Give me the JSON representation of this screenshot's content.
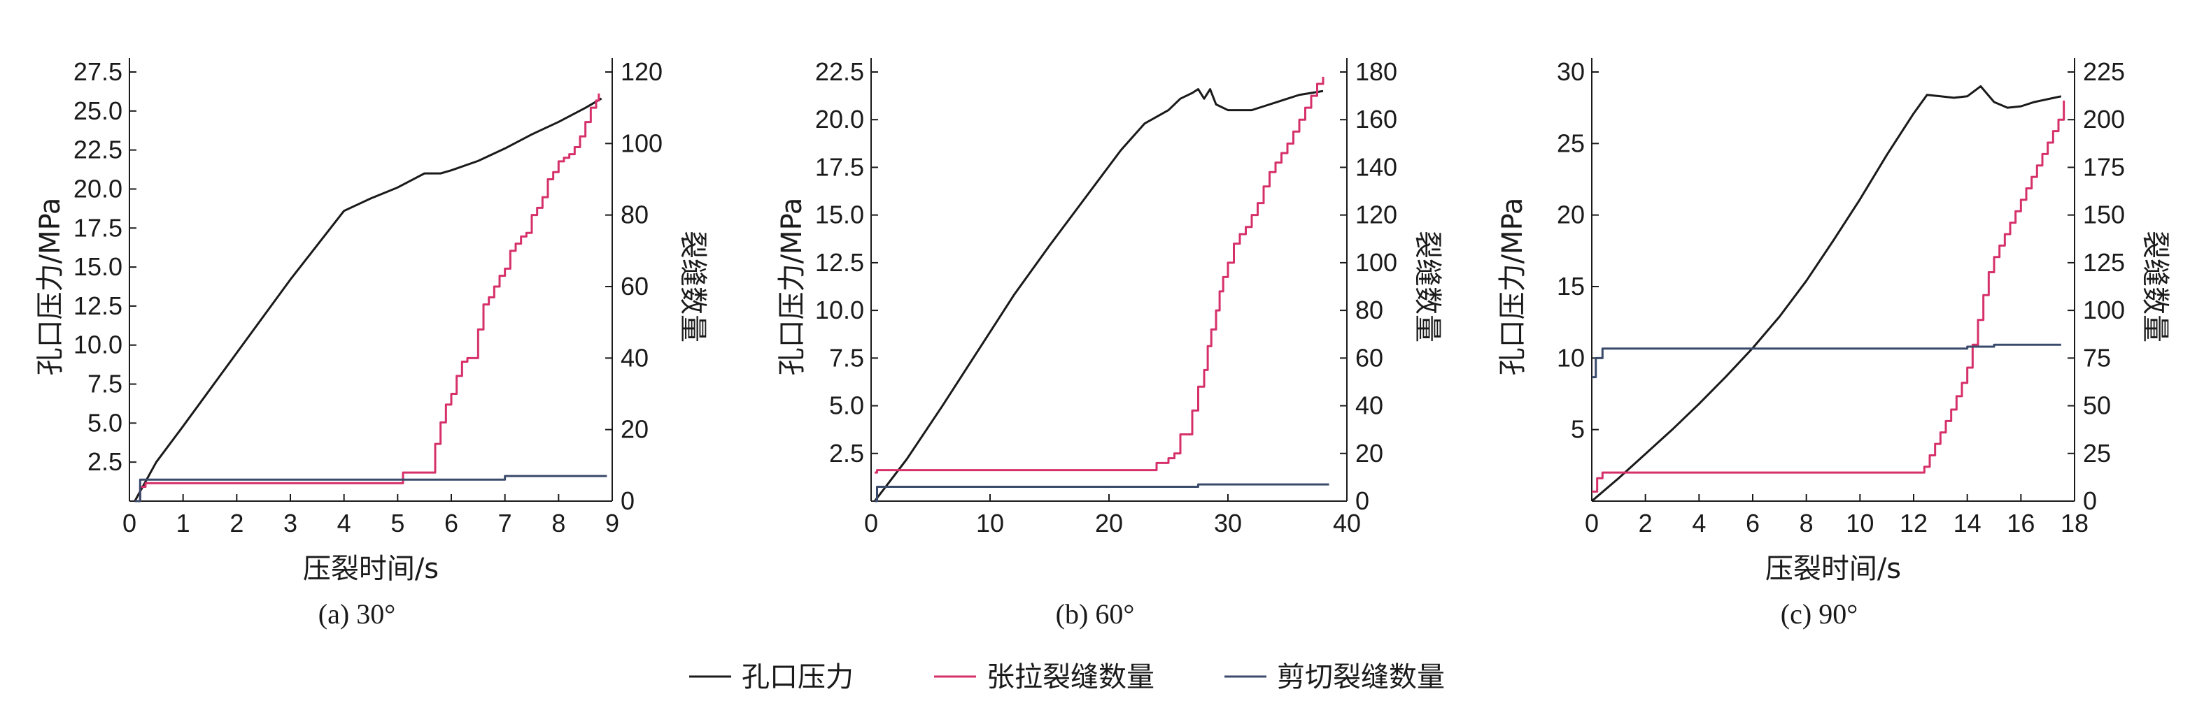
{
  "chart_data": [
    {
      "type": "line",
      "caption": "(a) 30°",
      "xlabel": "压裂时间/s",
      "ylabel": "孔口压力/MPa",
      "y2label": "裂缝数量",
      "xlim": [
        0,
        9
      ],
      "ylim": [
        0,
        27.5
      ],
      "y2lim": [
        0,
        120
      ],
      "xticks": [
        "0",
        "1",
        "2",
        "3",
        "4",
        "5",
        "6",
        "7",
        "8",
        "9"
      ],
      "yticks": [
        "2.5",
        "5.0",
        "7.5",
        "10.0",
        "12.5",
        "15.0",
        "17.5",
        "20.0",
        "22.5",
        "25.0",
        "27.5"
      ],
      "y2ticks": [
        "0",
        "20",
        "40",
        "60",
        "80",
        "100",
        "120"
      ],
      "series": [
        {
          "name": "孔口压力",
          "axis": "left",
          "color": "#1a1a1a",
          "x": [
            0.1,
            0.5,
            1,
            2,
            3,
            4,
            4.5,
            5,
            5.5,
            5.8,
            6,
            6.5,
            7,
            7.5,
            8,
            8.5,
            8.8
          ],
          "y": [
            0,
            2.5,
            4.8,
            9.5,
            14.2,
            18.6,
            19.4,
            20.1,
            21.0,
            21.0,
            21.2,
            21.8,
            22.6,
            23.5,
            24.3,
            25.2,
            25.8
          ]
        },
        {
          "name": "张拉裂缝数量",
          "axis": "right",
          "color": "#d6306a",
          "step": true,
          "x": [
            0.1,
            0.2,
            0.3,
            5.0,
            5.1,
            5.6,
            5.7,
            5.8,
            5.9,
            6.0,
            6.1,
            6.2,
            6.3,
            6.4,
            6.5,
            6.6,
            6.7,
            6.8,
            6.9,
            7.0,
            7.1,
            7.2,
            7.3,
            7.4,
            7.5,
            7.6,
            7.7,
            7.8,
            7.9,
            8.0,
            8.1,
            8.2,
            8.3,
            8.4,
            8.5,
            8.6,
            8.7,
            8.75
          ],
          "y": [
            0,
            4,
            5,
            5,
            8,
            8,
            16,
            22,
            27,
            30,
            35,
            39,
            40,
            40,
            48,
            55,
            57,
            60,
            63,
            65,
            70,
            72,
            74,
            75,
            80,
            82,
            85,
            90,
            92,
            95,
            96,
            97,
            99,
            102,
            106,
            110,
            112,
            114
          ]
        },
        {
          "name": "剪切裂缝数量",
          "axis": "right",
          "color": "#3a4a6b",
          "step": true,
          "x": [
            0.1,
            0.2,
            5.0,
            5.1,
            6.9,
            7.0,
            8.9
          ],
          "y": [
            0,
            6,
            6,
            6,
            6,
            7,
            7
          ]
        }
      ]
    },
    {
      "type": "line",
      "caption": "(b) 60°",
      "xlabel": "",
      "ylabel": "孔口压力/MPa",
      "y2label": "裂缝数量",
      "xlim": [
        0,
        40
      ],
      "ylim": [
        0,
        22.5
      ],
      "y2lim": [
        0,
        180
      ],
      "xticks": [
        "0",
        "10",
        "20",
        "30",
        "40"
      ],
      "yticks": [
        "2.5",
        "5.0",
        "7.5",
        "10.0",
        "12.5",
        "15.0",
        "17.5",
        "20.0",
        "22.5"
      ],
      "y2ticks": [
        "0",
        "20",
        "40",
        "60",
        "80",
        "100",
        "120",
        "140",
        "160",
        "180"
      ],
      "series": [
        {
          "name": "孔口压力",
          "axis": "left",
          "color": "#1a1a1a",
          "x": [
            0.3,
            3,
            6,
            9,
            12,
            15,
            18,
            21,
            23,
            25,
            26,
            27,
            27.5,
            28,
            28.5,
            29,
            30,
            31,
            32,
            33,
            34,
            35,
            36,
            37,
            38
          ],
          "y": [
            0,
            2.2,
            5,
            7.9,
            10.8,
            13.4,
            15.9,
            18.4,
            19.8,
            20.5,
            21.1,
            21.4,
            21.6,
            21.1,
            21.6,
            20.8,
            20.5,
            20.5,
            20.5,
            20.7,
            20.9,
            21.1,
            21.3,
            21.4,
            21.5
          ]
        },
        {
          "name": "张拉裂缝数量",
          "axis": "right",
          "color": "#d6306a",
          "step": true,
          "x": [
            0.3,
            0.5,
            23.5,
            24,
            25,
            25.5,
            26,
            26.5,
            27,
            27.5,
            28,
            28.3,
            28.6,
            29,
            29.3,
            29.6,
            30,
            30.5,
            31,
            31.5,
            32,
            32.5,
            33,
            33.5,
            34,
            34.5,
            35,
            35.5,
            36,
            36.5,
            37,
            37.5,
            38
          ],
          "y": [
            12,
            13,
            13,
            16,
            18,
            20,
            28,
            28,
            38,
            48,
            55,
            65,
            72,
            80,
            88,
            94,
            100,
            108,
            112,
            115,
            120,
            125,
            132,
            138,
            142,
            146,
            150,
            155,
            160,
            165,
            170,
            175,
            178
          ]
        },
        {
          "name": "剪切裂缝数量",
          "axis": "right",
          "color": "#3a4a6b",
          "step": true,
          "x": [
            0.3,
            0.5,
            27,
            27.5,
            38.5
          ],
          "y": [
            0,
            6,
            6,
            7,
            7
          ]
        }
      ]
    },
    {
      "type": "line",
      "caption": "(c) 90°",
      "xlabel": "压裂时间/s",
      "ylabel": "孔口压力/MPa",
      "y2label": "裂缝数量",
      "xlim": [
        0,
        18
      ],
      "ylim": [
        0,
        30
      ],
      "y2lim": [
        0,
        225
      ],
      "xticks": [
        "0",
        "2",
        "4",
        "6",
        "8",
        "10",
        "12",
        "14",
        "16",
        "18"
      ],
      "yticks": [
        "5",
        "10",
        "15",
        "20",
        "25",
        "30"
      ],
      "y2ticks": [
        "0",
        "25",
        "50",
        "75",
        "100",
        "125",
        "150",
        "175",
        "200",
        "225"
      ],
      "series": [
        {
          "name": "孔口压力",
          "axis": "left",
          "color": "#1a1a1a",
          "x": [
            0,
            1,
            2,
            3,
            4,
            5,
            6,
            7,
            8,
            9,
            10,
            11,
            12,
            12.5,
            13,
            13.5,
            14,
            14.5,
            15,
            15.5,
            16,
            16.5,
            17,
            17.5
          ],
          "y": [
            0,
            1.6,
            3.3,
            5.0,
            6.8,
            8.7,
            10.7,
            12.9,
            15.4,
            18.2,
            21.1,
            24.2,
            27.1,
            28.4,
            28.3,
            28.2,
            28.3,
            29.0,
            27.9,
            27.5,
            27.6,
            27.9,
            28.1,
            28.3
          ]
        },
        {
          "name": "张拉裂缝数量",
          "axis": "right",
          "color": "#d6306a",
          "step": true,
          "x": [
            0,
            0.2,
            0.4,
            12.2,
            12.4,
            12.6,
            12.8,
            13.0,
            13.2,
            13.4,
            13.6,
            13.8,
            14.0,
            14.2,
            14.4,
            14.6,
            14.8,
            15.0,
            15.2,
            15.4,
            15.6,
            15.8,
            16.0,
            16.2,
            16.4,
            16.6,
            16.8,
            17.0,
            17.2,
            17.4,
            17.6
          ],
          "y": [
            5,
            12,
            15,
            15,
            18,
            24,
            30,
            36,
            42,
            48,
            55,
            62,
            70,
            82,
            95,
            108,
            120,
            128,
            134,
            140,
            146,
            152,
            158,
            164,
            170,
            176,
            182,
            188,
            194,
            200,
            210
          ]
        },
        {
          "name": "剪切裂缝数量",
          "axis": "right",
          "color": "#3a4a6b",
          "step": true,
          "x": [
            0,
            0.15,
            0.4,
            12.5,
            14,
            15,
            17.5
          ],
          "y": [
            65,
            75,
            80,
            80,
            81,
            82,
            82
          ]
        }
      ]
    }
  ],
  "legend": {
    "placement": "bottom-center",
    "items": [
      {
        "label": "孔口压力",
        "color": "#1a1a1a"
      },
      {
        "label": "张拉裂缝数量",
        "color": "#d6306a"
      },
      {
        "label": "剪切裂缝数量",
        "color": "#3a4a6b"
      }
    ]
  }
}
